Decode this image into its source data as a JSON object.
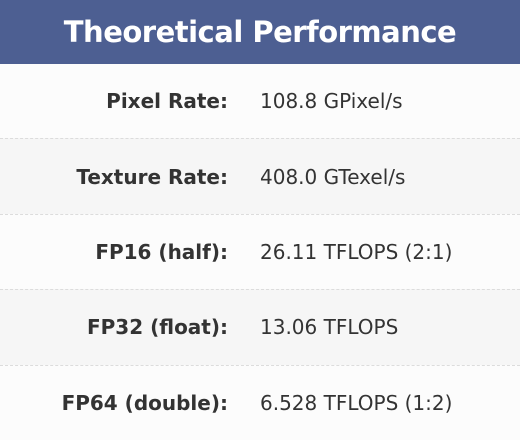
{
  "header": {
    "title": "Theoretical Performance"
  },
  "table": {
    "rows": [
      [
        "Pixel Rate:",
        "108.8 GPixel/s"
      ],
      [
        "Texture Rate:",
        "408.0 GTexel/s"
      ],
      [
        "FP16 (half):",
        "26.11 TFLOPS (2:1)"
      ],
      [
        "FP32 (float):",
        "13.06 TFLOPS"
      ],
      [
        "FP64 (double):",
        "6.528 TFLOPS (1:2)"
      ]
    ]
  }
}
